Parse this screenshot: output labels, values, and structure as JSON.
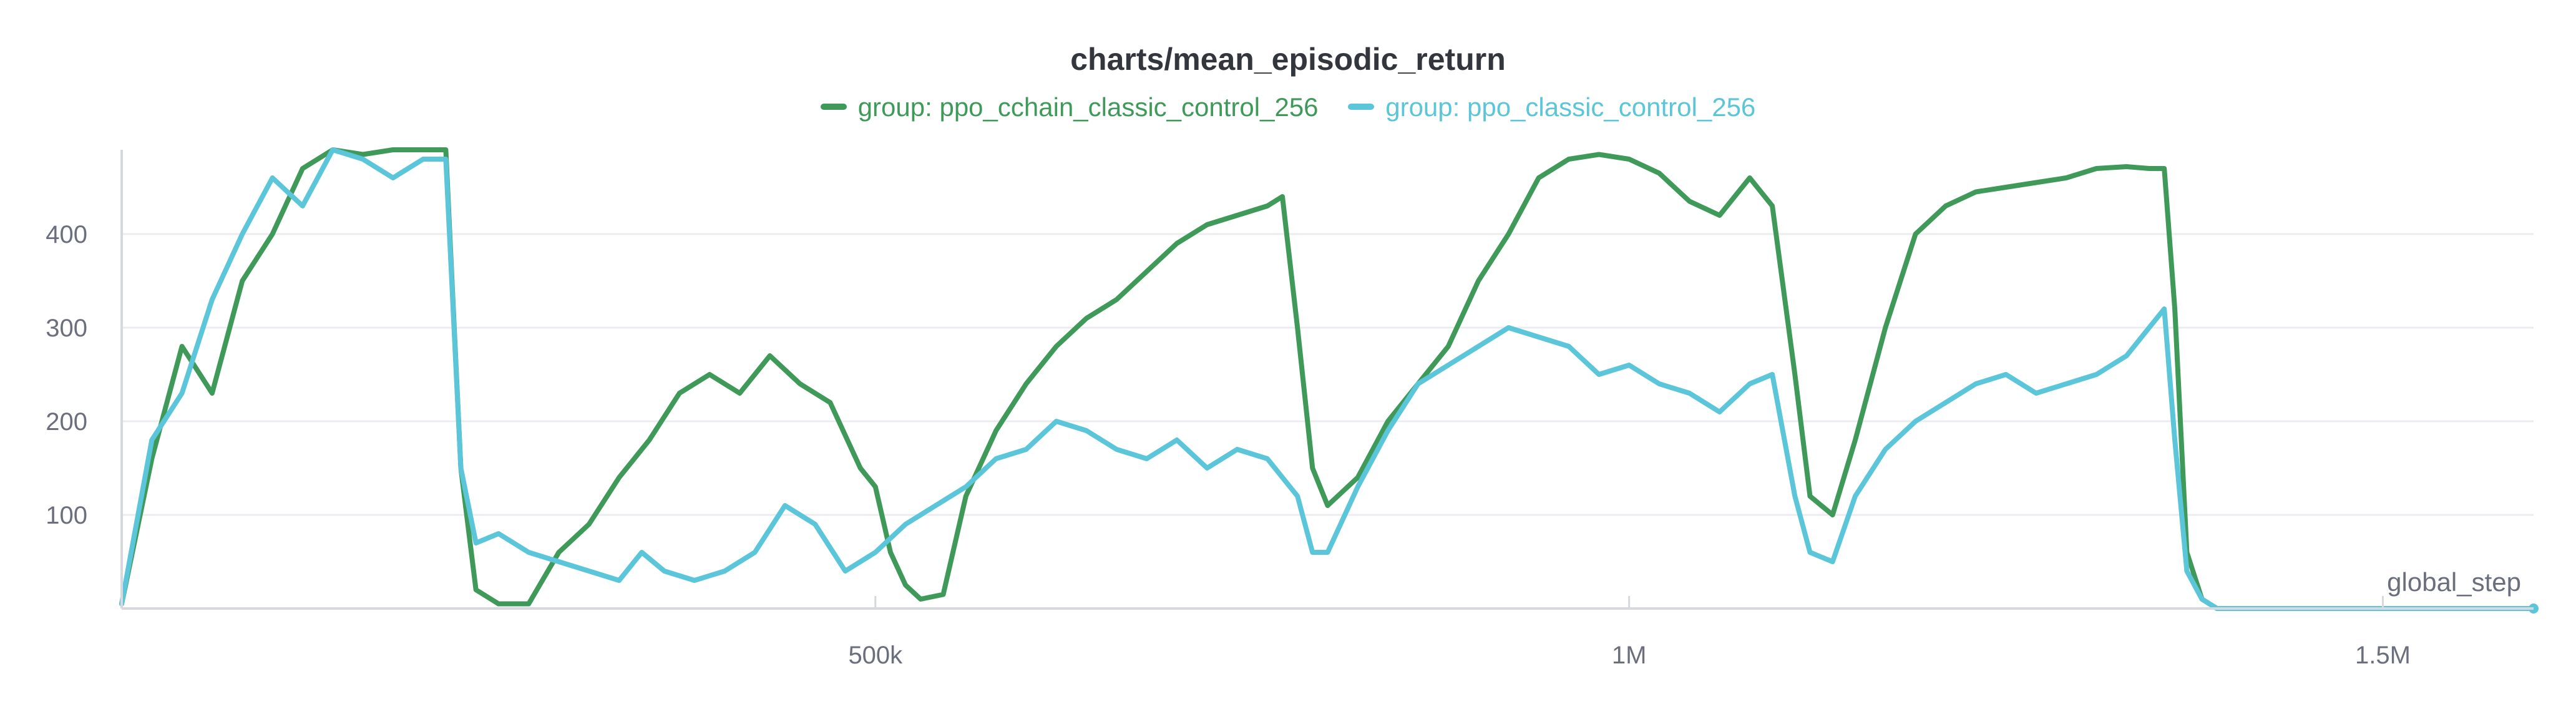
{
  "chart_data": {
    "type": "line",
    "title": "charts/mean_episodic_return",
    "xlabel": "global_step",
    "ylabel": "",
    "xlim": [
      0,
      1600000
    ],
    "ylim": [
      0,
      490
    ],
    "x_ticks": [
      500000,
      1000000,
      1500000
    ],
    "x_tick_labels": [
      "500k",
      "1M",
      "1.5M"
    ],
    "y_ticks": [
      100,
      200,
      300,
      400
    ],
    "y_tick_labels": [
      "100",
      "200",
      "300",
      "400"
    ],
    "grid": true,
    "legend_position": "top-center",
    "series": [
      {
        "name": "group: ppo_cchain_classic_control_256",
        "color": "#3f9a5a",
        "points": [
          [
            0,
            5
          ],
          [
            20000,
            160
          ],
          [
            40000,
            280
          ],
          [
            60000,
            230
          ],
          [
            80000,
            350
          ],
          [
            100000,
            400
          ],
          [
            120000,
            470
          ],
          [
            140000,
            490
          ],
          [
            160000,
            485
          ],
          [
            180000,
            490
          ],
          [
            200000,
            490
          ],
          [
            215000,
            490
          ],
          [
            225000,
            150
          ],
          [
            235000,
            20
          ],
          [
            250000,
            5
          ],
          [
            270000,
            5
          ],
          [
            290000,
            60
          ],
          [
            310000,
            90
          ],
          [
            330000,
            140
          ],
          [
            350000,
            180
          ],
          [
            370000,
            230
          ],
          [
            390000,
            250
          ],
          [
            410000,
            230
          ],
          [
            430000,
            270
          ],
          [
            450000,
            240
          ],
          [
            470000,
            220
          ],
          [
            490000,
            150
          ],
          [
            500000,
            130
          ],
          [
            510000,
            60
          ],
          [
            520000,
            25
          ],
          [
            530000,
            10
          ],
          [
            545000,
            15
          ],
          [
            560000,
            120
          ],
          [
            580000,
            190
          ],
          [
            600000,
            240
          ],
          [
            620000,
            280
          ],
          [
            640000,
            310
          ],
          [
            660000,
            330
          ],
          [
            680000,
            360
          ],
          [
            700000,
            390
          ],
          [
            720000,
            410
          ],
          [
            740000,
            420
          ],
          [
            760000,
            430
          ],
          [
            770000,
            440
          ],
          [
            780000,
            300
          ],
          [
            790000,
            150
          ],
          [
            800000,
            110
          ],
          [
            820000,
            140
          ],
          [
            840000,
            200
          ],
          [
            860000,
            240
          ],
          [
            880000,
            280
          ],
          [
            900000,
            350
          ],
          [
            920000,
            400
          ],
          [
            940000,
            460
          ],
          [
            960000,
            480
          ],
          [
            980000,
            485
          ],
          [
            1000000,
            480
          ],
          [
            1020000,
            465
          ],
          [
            1040000,
            435
          ],
          [
            1060000,
            420
          ],
          [
            1080000,
            460
          ],
          [
            1095000,
            430
          ],
          [
            1110000,
            250
          ],
          [
            1120000,
            120
          ],
          [
            1135000,
            100
          ],
          [
            1150000,
            180
          ],
          [
            1170000,
            300
          ],
          [
            1190000,
            400
          ],
          [
            1210000,
            430
          ],
          [
            1230000,
            445
          ],
          [
            1250000,
            450
          ],
          [
            1270000,
            455
          ],
          [
            1290000,
            460
          ],
          [
            1310000,
            470
          ],
          [
            1330000,
            472
          ],
          [
            1345000,
            470
          ],
          [
            1355000,
            470
          ],
          [
            1362000,
            320
          ],
          [
            1370000,
            60
          ],
          [
            1380000,
            10
          ],
          [
            1390000,
            0
          ],
          [
            1600000,
            0
          ]
        ]
      },
      {
        "name": "group: ppo_classic_control_256",
        "color": "#5bc5da",
        "points": [
          [
            0,
            5
          ],
          [
            20000,
            180
          ],
          [
            40000,
            230
          ],
          [
            60000,
            330
          ],
          [
            80000,
            400
          ],
          [
            100000,
            460
          ],
          [
            120000,
            430
          ],
          [
            140000,
            490
          ],
          [
            160000,
            480
          ],
          [
            180000,
            460
          ],
          [
            200000,
            480
          ],
          [
            215000,
            480
          ],
          [
            225000,
            150
          ],
          [
            235000,
            70
          ],
          [
            250000,
            80
          ],
          [
            270000,
            60
          ],
          [
            290000,
            50
          ],
          [
            310000,
            40
          ],
          [
            330000,
            30
          ],
          [
            345000,
            60
          ],
          [
            360000,
            40
          ],
          [
            380000,
            30
          ],
          [
            400000,
            40
          ],
          [
            420000,
            60
          ],
          [
            440000,
            110
          ],
          [
            460000,
            90
          ],
          [
            480000,
            40
          ],
          [
            500000,
            60
          ],
          [
            520000,
            90
          ],
          [
            540000,
            110
          ],
          [
            560000,
            130
          ],
          [
            580000,
            160
          ],
          [
            600000,
            170
          ],
          [
            620000,
            200
          ],
          [
            640000,
            190
          ],
          [
            660000,
            170
          ],
          [
            680000,
            160
          ],
          [
            700000,
            180
          ],
          [
            720000,
            150
          ],
          [
            740000,
            170
          ],
          [
            760000,
            160
          ],
          [
            780000,
            120
          ],
          [
            790000,
            60
          ],
          [
            800000,
            60
          ],
          [
            820000,
            130
          ],
          [
            840000,
            190
          ],
          [
            860000,
            240
          ],
          [
            880000,
            260
          ],
          [
            900000,
            280
          ],
          [
            920000,
            300
          ],
          [
            940000,
            290
          ],
          [
            960000,
            280
          ],
          [
            980000,
            250
          ],
          [
            1000000,
            260
          ],
          [
            1020000,
            240
          ],
          [
            1040000,
            230
          ],
          [
            1060000,
            210
          ],
          [
            1080000,
            240
          ],
          [
            1095000,
            250
          ],
          [
            1110000,
            120
          ],
          [
            1120000,
            60
          ],
          [
            1135000,
            50
          ],
          [
            1150000,
            120
          ],
          [
            1170000,
            170
          ],
          [
            1190000,
            200
          ],
          [
            1210000,
            220
          ],
          [
            1230000,
            240
          ],
          [
            1250000,
            250
          ],
          [
            1270000,
            230
          ],
          [
            1290000,
            240
          ],
          [
            1310000,
            250
          ],
          [
            1330000,
            270
          ],
          [
            1345000,
            300
          ],
          [
            1355000,
            320
          ],
          [
            1362000,
            180
          ],
          [
            1370000,
            40
          ],
          [
            1380000,
            10
          ],
          [
            1390000,
            0
          ],
          [
            1600000,
            0
          ]
        ]
      }
    ]
  }
}
